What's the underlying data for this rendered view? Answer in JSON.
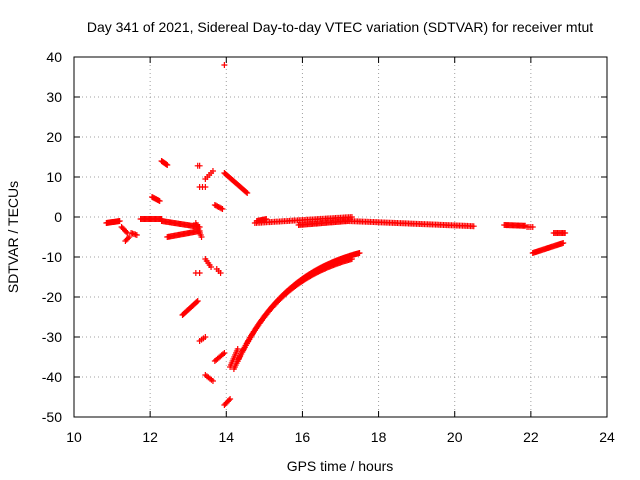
{
  "chart_data": {
    "type": "scatter",
    "title": "Day 341 of 2021, Sidereal Day-to-day VTEC variation (SDTVAR) for receiver mtut",
    "xlabel": "GPS time / hours",
    "ylabel": "SDTVAR / TECUs",
    "xlim": [
      10,
      24
    ],
    "ylim": [
      -50,
      40
    ],
    "xticks": [
      10,
      12,
      14,
      16,
      18,
      20,
      22,
      24
    ],
    "yticks": [
      -50,
      -40,
      -30,
      -20,
      -10,
      0,
      10,
      20,
      30,
      40
    ],
    "grid": true,
    "marker": "+",
    "color": "#ff0000",
    "segments": [
      {
        "x0": 10.85,
        "x1": 11.2,
        "y0": -1.5,
        "y1": -1.0,
        "n": 18
      },
      {
        "x0": 11.25,
        "x1": 11.4,
        "y0": -2.5,
        "y1": -4.0,
        "n": 6
      },
      {
        "x0": 11.35,
        "x1": 11.45,
        "y0": -6.0,
        "y1": -5.0,
        "n": 4
      },
      {
        "x0": 11.5,
        "x1": 11.65,
        "y0": -4.0,
        "y1": -4.5,
        "n": 5
      },
      {
        "x0": 11.75,
        "x1": 12.3,
        "y0": -0.5,
        "y1": -0.5,
        "n": 20
      },
      {
        "x0": 12.05,
        "x1": 12.25,
        "y0": 5.0,
        "y1": 4.0,
        "n": 8
      },
      {
        "x0": 12.3,
        "x1": 12.45,
        "y0": 14.0,
        "y1": 13.0,
        "n": 8
      },
      {
        "x0": 12.3,
        "x1": 13.3,
        "y0": -1.0,
        "y1": -2.5,
        "n": 35
      },
      {
        "x0": 12.45,
        "x1": 13.3,
        "y0": -5.0,
        "y1": -3.5,
        "n": 30
      },
      {
        "x0": 13.2,
        "x1": 13.35,
        "y0": -1.5,
        "y1": -5.0,
        "n": 8
      },
      {
        "x0": 12.85,
        "x1": 13.25,
        "y0": -24.5,
        "y1": -21.0,
        "n": 18
      },
      {
        "x0": 13.25,
        "x1": 13.3,
        "y0": 12.8,
        "y1": 12.8,
        "n": 2
      },
      {
        "x0": 13.3,
        "x1": 13.45,
        "y0": 7.5,
        "y1": 7.5,
        "n": 3
      },
      {
        "x0": 13.45,
        "x1": 13.65,
        "y0": 9.5,
        "y1": 11.5,
        "n": 5
      },
      {
        "x0": 13.2,
        "x1": 13.3,
        "y0": -14.0,
        "y1": -14.0,
        "n": 2
      },
      {
        "x0": 13.45,
        "x1": 13.6,
        "y0": -10.5,
        "y1": -12.5,
        "n": 5
      },
      {
        "x0": 13.75,
        "x1": 13.85,
        "y0": -13.0,
        "y1": -14.0,
        "n": 3
      },
      {
        "x0": 13.7,
        "x1": 13.9,
        "y0": 3.0,
        "y1": 2.0,
        "n": 7
      },
      {
        "x0": 13.3,
        "x1": 13.45,
        "y0": -31.0,
        "y1": -30.0,
        "n": 4
      },
      {
        "x0": 13.45,
        "x1": 13.65,
        "y0": -39.5,
        "y1": -41.0,
        "n": 6
      },
      {
        "x0": 13.7,
        "x1": 13.95,
        "y0": -36.0,
        "y1": -34.0,
        "n": 8
      },
      {
        "x0": 13.95,
        "x1": 14.1,
        "y0": -47.0,
        "y1": -45.5,
        "n": 6
      },
      {
        "x0": 13.95,
        "x1": 14.55,
        "y0": 11.0,
        "y1": 6.0,
        "n": 24
      },
      {
        "x0": 13.95,
        "x1": 13.95,
        "y0": 38.0,
        "y1": 38.0,
        "n": 1
      },
      {
        "x0": 14.1,
        "x1": 14.3,
        "y0": -37.5,
        "y1": -33.0,
        "n": 10
      },
      {
        "x0": 14.8,
        "x1": 15.05,
        "y0": -1.0,
        "y1": -0.5,
        "n": 10
      },
      {
        "x0": 14.75,
        "x1": 17.3,
        "y0": -1.5,
        "y1": 0.0,
        "n": 60
      },
      {
        "x0": 15.9,
        "x1": 17.2,
        "y0": -2.0,
        "y1": -1.0,
        "n": 40
      },
      {
        "x0": 17.2,
        "x1": 20.5,
        "y0": -1.0,
        "y1": -2.3,
        "n": 80
      },
      {
        "x0": 21.3,
        "x1": 21.85,
        "y0": -2.0,
        "y1": -2.2,
        "n": 20
      },
      {
        "x0": 21.9,
        "x1": 22.05,
        "y0": -2.5,
        "y1": -2.5,
        "n": 4
      },
      {
        "x0": 22.05,
        "x1": 22.85,
        "y0": -9.0,
        "y1": -6.5,
        "n": 30
      },
      {
        "x0": 22.6,
        "x1": 22.9,
        "y0": -4.0,
        "y1": -4.0,
        "n": 10
      }
    ],
    "curves": [
      {
        "x0": 14.2,
        "x1": 17.5,
        "y_start": -38.0,
        "y_end": -9.0,
        "shape": "decay",
        "k": 2.1,
        "n": 140
      },
      {
        "x0": 14.3,
        "x1": 17.3,
        "y_start": -36.0,
        "y_end": -10.5,
        "shape": "decay",
        "k": 2.0,
        "n": 100
      }
    ]
  }
}
